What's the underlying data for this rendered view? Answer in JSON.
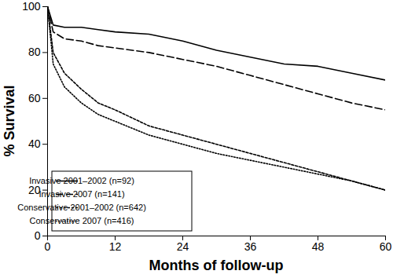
{
  "chart_data": {
    "type": "line",
    "x_label": "Months of follow-up",
    "y_label": "% Survival",
    "x": [
      0,
      1,
      3,
      6,
      9,
      12,
      18,
      24,
      30,
      36,
      42,
      48,
      54,
      60
    ],
    "series": [
      {
        "name": "Invasive 2001–2002 (n=92)",
        "color": "#000000",
        "line_style": "solid",
        "values": [
          100,
          92,
          91,
          91,
          90,
          89,
          88,
          85,
          81,
          78,
          75,
          74,
          71,
          68
        ]
      },
      {
        "name": "Invasive 2007 (n=141)",
        "color": "#000000",
        "line_style": "dashed",
        "values": [
          100,
          89,
          86,
          85,
          83,
          82,
          80,
          77,
          74,
          70,
          66,
          62,
          58,
          55
        ]
      },
      {
        "name": "Conservative 2001–2002 (n=642)",
        "color": "#000000",
        "line_style": "short_dashed",
        "values": [
          100,
          80,
          71,
          64,
          58,
          55,
          48,
          44,
          40,
          36,
          32,
          28,
          24,
          20
        ]
      },
      {
        "name": "Conservative 2007 (n=416)",
        "color": "#000000",
        "line_style": "dotted",
        "values": [
          100,
          75,
          65,
          58,
          53,
          50,
          44,
          40,
          36,
          33,
          30,
          27,
          24,
          20
        ]
      }
    ],
    "xlim": [
      0,
      60
    ],
    "ylim": [
      0,
      100
    ],
    "xticks": [
      0,
      12,
      24,
      36,
      48,
      60
    ],
    "yticks": [
      0,
      20,
      40,
      60,
      80,
      100
    ],
    "grid": false,
    "legend": "lower left"
  }
}
